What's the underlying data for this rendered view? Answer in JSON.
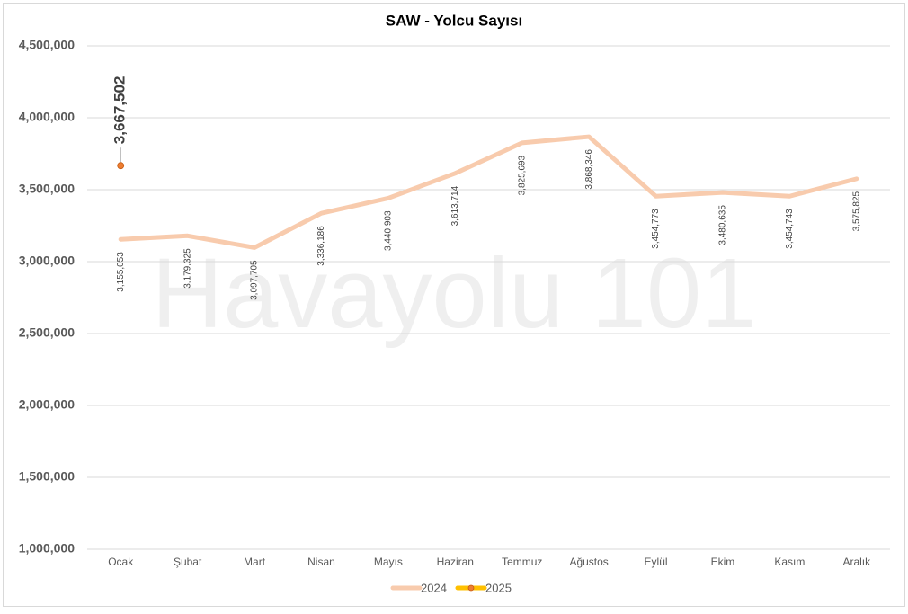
{
  "chart_data": {
    "type": "line",
    "title": "SAW - Yolcu Sayısı",
    "watermark": "Havayolu 101",
    "categories": [
      "Ocak",
      "Şubat",
      "Mart",
      "Nisan",
      "Mayıs",
      "Haziran",
      "Temmuz",
      "Ağustos",
      "Eylül",
      "Ekim",
      "Kasım",
      "Aralık"
    ],
    "series": [
      {
        "name": "2024",
        "color": "#f8cbad",
        "marker": false,
        "values": [
          3155053,
          3179325,
          3097705,
          3336186,
          3440903,
          3613714,
          3825693,
          3868346,
          3454773,
          3480635,
          3454743,
          3575825
        ],
        "value_labels": [
          "3,155,053",
          "3,179,325",
          "3,097,705",
          "3,336,186",
          "3,440,903",
          "3,613,714",
          "3,825,693",
          "3,868,346",
          "3,454,773",
          "3,480,635",
          "3,454,743",
          "3,575,825"
        ]
      },
      {
        "name": "2025",
        "color": "#ffc000",
        "marker": true,
        "marker_color": "#ed7d31",
        "values": [
          3667502,
          null,
          null,
          null,
          null,
          null,
          null,
          null,
          null,
          null,
          null,
          null
        ],
        "value_labels": [
          "3,667,502",
          null,
          null,
          null,
          null,
          null,
          null,
          null,
          null,
          null,
          null,
          null
        ]
      }
    ],
    "ylim": [
      1000000,
      4500000
    ],
    "yticks": [
      {
        "value": 1000000,
        "label": "1,000,000"
      },
      {
        "value": 1500000,
        "label": "1,500,000"
      },
      {
        "value": 2000000,
        "label": "2,000,000"
      },
      {
        "value": 2500000,
        "label": "2,500,000"
      },
      {
        "value": 3000000,
        "label": "3,000,000"
      },
      {
        "value": 3500000,
        "label": "3,500,000"
      },
      {
        "value": 4000000,
        "label": "4,000,000"
      },
      {
        "value": 4500000,
        "label": "4,500,000"
      }
    ],
    "grid": true,
    "legend": "bottom"
  }
}
